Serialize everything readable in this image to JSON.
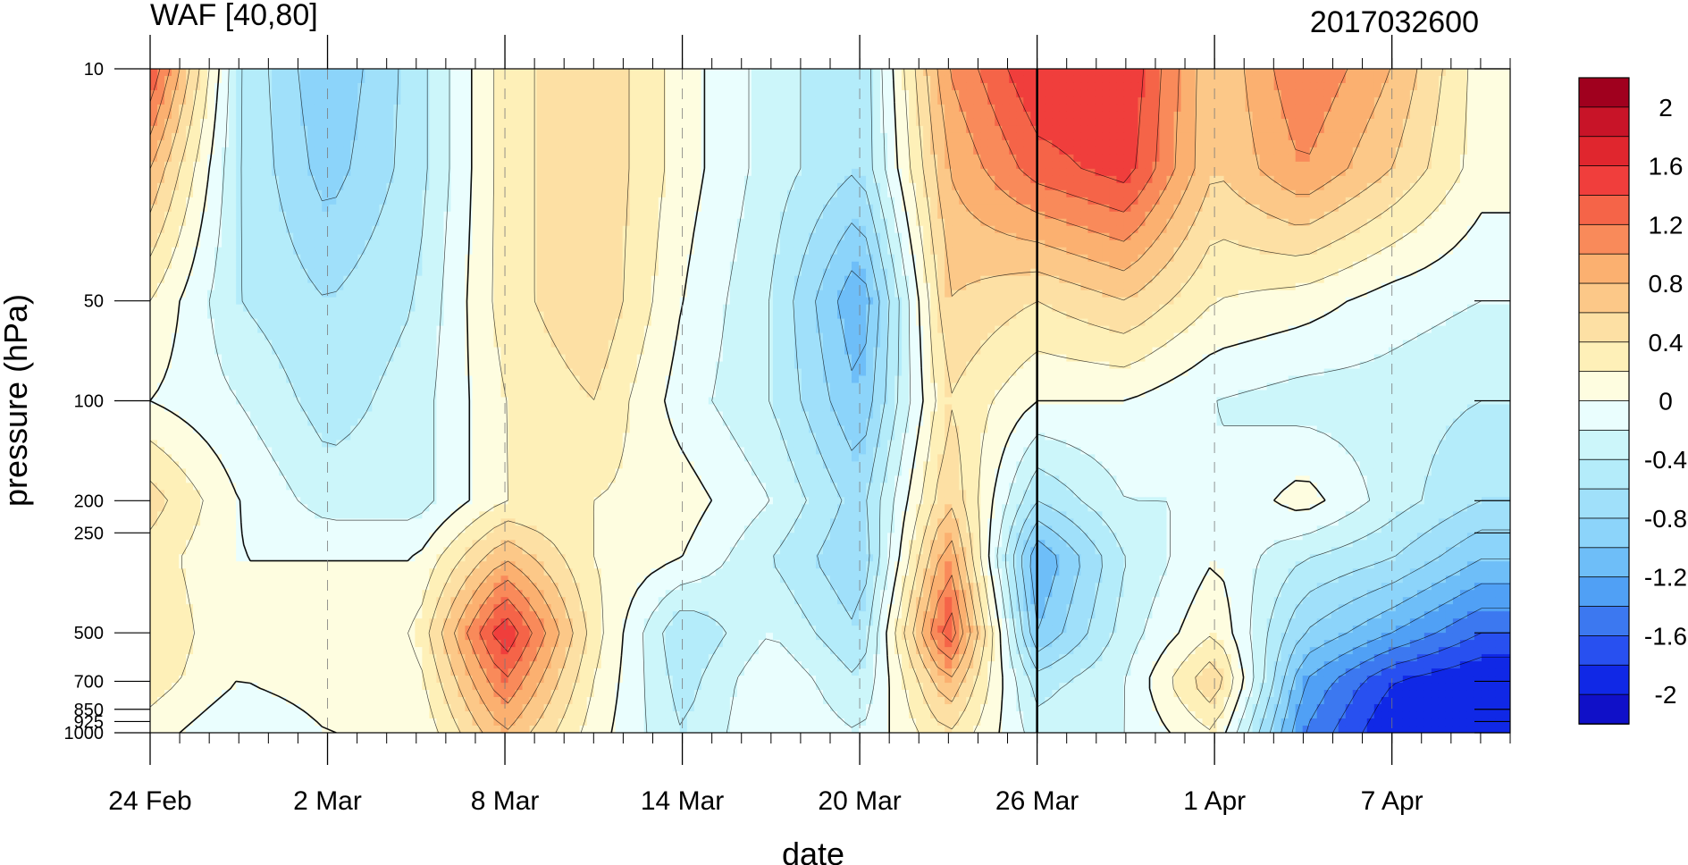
{
  "chart_data": {
    "type": "heatmap",
    "title": "WAF [40,80]",
    "subtitle": "2017032600",
    "xlabel": "date",
    "ylabel": "pressure (hPa)",
    "x_axis": {
      "kind": "date",
      "start": "2017-02-24",
      "end": "2017-04-11",
      "tick_labels": [
        "24 Feb",
        "2 Mar",
        "8 Mar",
        "14 Mar",
        "20 Mar",
        "26 Mar",
        "1 Apr",
        "7 Apr"
      ],
      "tick_dates": [
        "2017-02-24",
        "2017-03-02",
        "2017-03-08",
        "2017-03-14",
        "2017-03-20",
        "2017-03-26",
        "2017-04-01",
        "2017-04-07"
      ],
      "minor_tick_interval_days": 1
    },
    "y_axis": {
      "scale": "log",
      "reversed": true,
      "range": [
        1000,
        10
      ],
      "tick_labels": [
        "10",
        "50",
        "100",
        "200",
        "250",
        "500",
        "700",
        "850",
        "925",
        "1000"
      ],
      "tick_values": [
        10,
        50,
        100,
        200,
        250,
        500,
        700,
        850,
        925,
        1000
      ]
    },
    "forecast_line_date": "2017-03-26",
    "levels": [
      -2.2,
      -2,
      -1.8,
      -1.6,
      -1.4,
      -1.2,
      -1,
      -0.8,
      -0.6,
      -0.4,
      -0.2,
      0,
      0.2,
      0.4,
      0.6,
      0.8,
      1,
      1.2,
      1.4,
      1.6,
      1.8,
      2,
      2.2
    ],
    "colorbar": {
      "labels": [
        "2",
        "1.6",
        "1.2",
        "0.8",
        "0.4",
        "0",
        "-0.4",
        "-0.8",
        "-1.2",
        "-1.6",
        "-2"
      ],
      "label_values": [
        2,
        1.6,
        1.2,
        0.8,
        0.4,
        0,
        -0.4,
        -0.8,
        -1.2,
        -1.6,
        -2
      ],
      "colors": [
        "#1010c8",
        "#1028e6",
        "#2850f0",
        "#3c78f0",
        "#50a0f5",
        "#6ebef8",
        "#8cd4fa",
        "#a0e0fa",
        "#b4ecfa",
        "#ccf6fa",
        "#eafefe",
        "#fefde0",
        "#fef0b8",
        "#fde0a4",
        "#fcc888",
        "#fbb070",
        "#f98a5a",
        "#f56448",
        "#f03e3c",
        "#e0262e",
        "#c81428",
        "#a0001e"
      ]
    },
    "field": {
      "dates": [
        "2017-02-24",
        "2017-02-27",
        "2017-03-02",
        "2017-03-05",
        "2017-03-08",
        "2017-03-11",
        "2017-03-14",
        "2017-03-17",
        "2017-03-20",
        "2017-03-23",
        "2017-03-26",
        "2017-03-29",
        "2017-04-01",
        "2017-04-04",
        "2017-04-07",
        "2017-04-10"
      ],
      "pressures": [
        10,
        20,
        50,
        100,
        200,
        300,
        500,
        700,
        1000
      ],
      "values": [
        [
          1.4,
          -0.4,
          -1.0,
          -0.5,
          0.3,
          0.6,
          0.1,
          -0.3,
          -0.6,
          1.0,
          1.6,
          1.6,
          0.6,
          1.2,
          0.8,
          0.1
        ],
        [
          0.8,
          -0.4,
          -0.9,
          -0.5,
          0.3,
          0.6,
          0.1,
          -0.3,
          -0.6,
          0.8,
          1.3,
          1.5,
          0.6,
          1.0,
          0.6,
          0.1
        ],
        [
          0.2,
          -0.4,
          -0.6,
          -0.4,
          0.3,
          0.6,
          0.0,
          -0.4,
          -1.2,
          0.6,
          0.4,
          0.6,
          0.2,
          0.1,
          -0.1,
          -0.2
        ],
        [
          0.0,
          -0.2,
          -0.5,
          -0.3,
          0.2,
          0.4,
          -0.1,
          -0.4,
          -1.0,
          0.4,
          0.0,
          0.0,
          -0.2,
          -0.3,
          -0.3,
          -0.4
        ],
        [
          0.5,
          0.0,
          -0.3,
          -0.3,
          0.2,
          0.2,
          0.1,
          -0.2,
          -0.7,
          0.6,
          -0.6,
          -0.2,
          -0.2,
          0.1,
          -0.3,
          -0.6
        ],
        [
          0.3,
          0.0,
          0.0,
          0.0,
          0.8,
          0.2,
          0.0,
          -0.4,
          -0.8,
          1.0,
          -1.2,
          -0.4,
          0.0,
          -0.4,
          -0.6,
          -1.0
        ],
        [
          0.4,
          0.0,
          0.2,
          0.2,
          1.6,
          0.3,
          -0.6,
          -0.2,
          -0.6,
          1.4,
          -1.0,
          -0.3,
          0.2,
          -0.8,
          -1.2,
          -1.6
        ],
        [
          0.3,
          0.0,
          0.1,
          0.1,
          1.2,
          0.2,
          -0.5,
          0.0,
          -0.4,
          0.8,
          -0.5,
          -0.2,
          0.6,
          -1.2,
          -1.8,
          -2.0
        ],
        [
          0.1,
          -0.2,
          0.0,
          0.0,
          0.8,
          0.1,
          -0.4,
          0.0,
          -0.2,
          0.4,
          -0.3,
          -0.2,
          0.2,
          -1.4,
          -2.0,
          -2.0
        ]
      ]
    }
  }
}
